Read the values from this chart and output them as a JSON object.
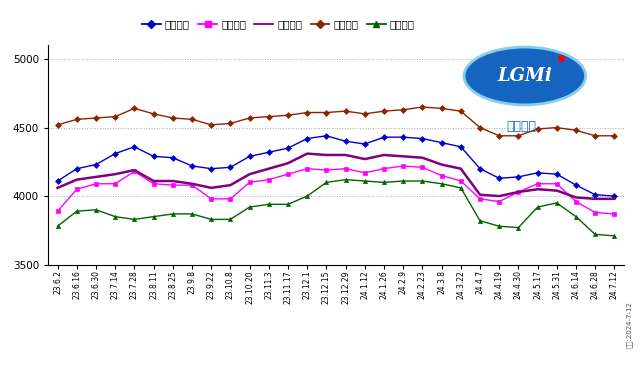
{
  "ylim": [
    3500,
    5100
  ],
  "yticks": [
    3500,
    4000,
    4500,
    5000
  ],
  "background_color": "#ffffff",
  "legend_labels": [
    "全国板材",
    "全国型材",
    "全国综合",
    "全国管材",
    "全国长材"
  ],
  "x_labels": [
    "23.6.2",
    "23.6.16",
    "23.6.30",
    "23.7.14",
    "23.7.28",
    "23.8.11",
    "23.8.25",
    "23.9.8",
    "23.9.22",
    "23.10.8",
    "23.10.20",
    "23.11.3",
    "23.11.17",
    "23.12.1",
    "23.12.15",
    "23.12.29",
    "24.1.12",
    "24.1.26",
    "24.2.9",
    "24.2.23",
    "24.3.8",
    "24.3.22",
    "24.4.7",
    "24.4.19",
    "24.4.30",
    "24.5.17",
    "24.5.31",
    "24.6.14",
    "24.6.28",
    "24.7.12"
  ],
  "series": {
    "板材": [
      4110,
      4200,
      4230,
      4310,
      4360,
      4290,
      4280,
      4220,
      4200,
      4210,
      4290,
      4320,
      4350,
      4420,
      4440,
      4400,
      4380,
      4430,
      4430,
      4420,
      4390,
      4360,
      4200,
      4130,
      4140,
      4170,
      4160,
      4080,
      4010,
      4000
    ],
    "型材": [
      3890,
      4050,
      4090,
      4090,
      4180,
      4090,
      4080,
      4080,
      3980,
      3980,
      4100,
      4120,
      4160,
      4200,
      4190,
      4200,
      4170,
      4200,
      4220,
      4210,
      4150,
      4110,
      3980,
      3960,
      4030,
      4090,
      4090,
      3960,
      3880,
      3870
    ],
    "综合": [
      4060,
      4120,
      4140,
      4160,
      4190,
      4110,
      4110,
      4090,
      4060,
      4080,
      4160,
      4200,
      4240,
      4310,
      4300,
      4300,
      4270,
      4300,
      4290,
      4280,
      4230,
      4200,
      4010,
      4000,
      4030,
      4050,
      4040,
      3990,
      3980,
      3980
    ],
    "管材": [
      4520,
      4560,
      4570,
      4580,
      4640,
      4600,
      4570,
      4560,
      4520,
      4530,
      4570,
      4580,
      4590,
      4610,
      4610,
      4620,
      4600,
      4620,
      4630,
      4650,
      4640,
      4620,
      4500,
      4440,
      4440,
      4490,
      4500,
      4480,
      4440,
      4440
    ],
    "长材": [
      3780,
      3890,
      3900,
      3850,
      3830,
      3850,
      3870,
      3870,
      3830,
      3830,
      3920,
      3940,
      3940,
      4000,
      4100,
      4120,
      4110,
      4100,
      4110,
      4110,
      4090,
      4060,
      3820,
      3780,
      3770,
      3920,
      3950,
      3850,
      3720,
      3710
    ]
  },
  "line_configs": [
    {
      "color": "#0000CC",
      "marker": "D",
      "markersize": 3,
      "linewidth": 1.0,
      "label": "全国板材"
    },
    {
      "color": "#FF00FF",
      "marker": "s",
      "markersize": 3,
      "linewidth": 1.0,
      "label": "全国型材"
    },
    {
      "color": "#800080",
      "marker": "None",
      "markersize": 0,
      "linewidth": 1.8,
      "label": "全国综合"
    },
    {
      "color": "#8B2500",
      "marker": "D",
      "markersize": 3,
      "linewidth": 1.0,
      "label": "全国管材"
    },
    {
      "color": "#006400",
      "marker": "^",
      "markersize": 3,
      "linewidth": 1.0,
      "label": "全国长材"
    }
  ],
  "source_text": "来源:2024-7-12",
  "logo_text1": "LGMI",
  "logo_text2": "兰格钢铁"
}
